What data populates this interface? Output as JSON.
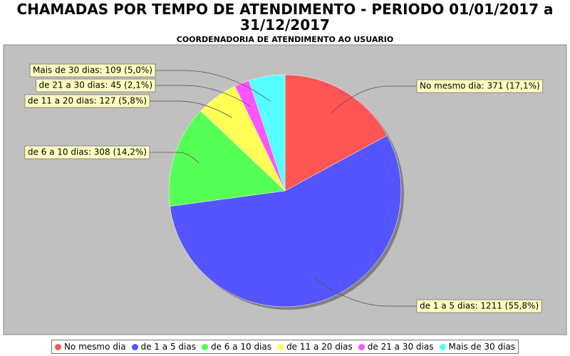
{
  "chart_data": {
    "type": "pie",
    "title": "CHAMADAS POR TEMPO DE ATENDIMENTO - PERIODO 01/01/2017 a 31/12/2017",
    "subtitle": "COORDENADORIA DE ATENDIMENTO AO USUARIO",
    "categories": [
      "No mesmo dia",
      "de 1 a 5 dias",
      "de 6 a 10 dias",
      "de 11 a 20 dias",
      "de 21 a 30 dias",
      "Mais de 30 dias"
    ],
    "values": [
      371,
      1211,
      308,
      127,
      45,
      109
    ],
    "value_labels": [
      "No mesmo dia: 371 (17,1%)",
      "de 1 a 5 dias: 1211 (55,8%)",
      "de 6 a 10 dias: 308 (14,2%)",
      "de 11 a 20 dias: 127 (5,8%)",
      "de 21 a 30 dias: 45 (2,1%)",
      "Mais de 30 dias: 109 (5,0%)"
    ],
    "colors": [
      "#ff5555",
      "#5555ff",
      "#55ff55",
      "#ffff55",
      "#ff55ff",
      "#55ffff"
    ],
    "legend": "bottom"
  }
}
